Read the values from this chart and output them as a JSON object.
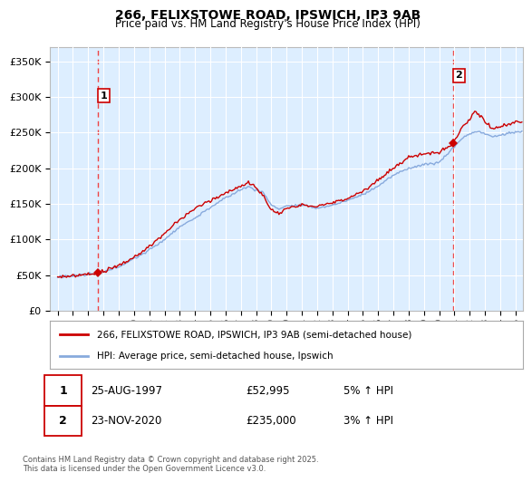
{
  "title1": "266, FELIXSTOWE ROAD, IPSWICH, IP3 9AB",
  "title2": "Price paid vs. HM Land Registry's House Price Index (HPI)",
  "legend_label1": "266, FELIXSTOWE ROAD, IPSWICH, IP3 9AB (semi-detached house)",
  "legend_label2": "HPI: Average price, semi-detached house, Ipswich",
  "footnote": "Contains HM Land Registry data © Crown copyright and database right 2025.\nThis data is licensed under the Open Government Licence v3.0.",
  "annotation1_label": "1",
  "annotation1_date": "25-AUG-1997",
  "annotation1_price": "£52,995",
  "annotation1_hpi": "5% ↑ HPI",
  "annotation2_label": "2",
  "annotation2_date": "23-NOV-2020",
  "annotation2_price": "£235,000",
  "annotation2_hpi": "3% ↑ HPI",
  "sale1_x": 1997.65,
  "sale1_y": 52995,
  "sale2_x": 2020.9,
  "sale2_y": 235000,
  "line_color_red": "#cc0000",
  "line_color_blue": "#88aadd",
  "background_plot": "#ddeeff",
  "background_fig": "#ffffff",
  "grid_color": "#ffffff",
  "dashed_line_color": "#ee4444",
  "ylim_min": 0,
  "ylim_max": 370000,
  "yticks": [
    0,
    50000,
    100000,
    150000,
    200000,
    250000,
    300000,
    350000
  ],
  "ytick_labels": [
    "£0",
    "£50K",
    "£100K",
    "£150K",
    "£200K",
    "£250K",
    "£300K",
    "£350K"
  ],
  "xlim_min": 1994.5,
  "xlim_max": 2025.5,
  "xtick_years": [
    1995,
    1996,
    1997,
    1998,
    1999,
    2000,
    2001,
    2002,
    2003,
    2004,
    2005,
    2006,
    2007,
    2008,
    2009,
    2010,
    2011,
    2012,
    2013,
    2014,
    2015,
    2016,
    2017,
    2018,
    2019,
    2020,
    2021,
    2022,
    2023,
    2024,
    2025
  ]
}
